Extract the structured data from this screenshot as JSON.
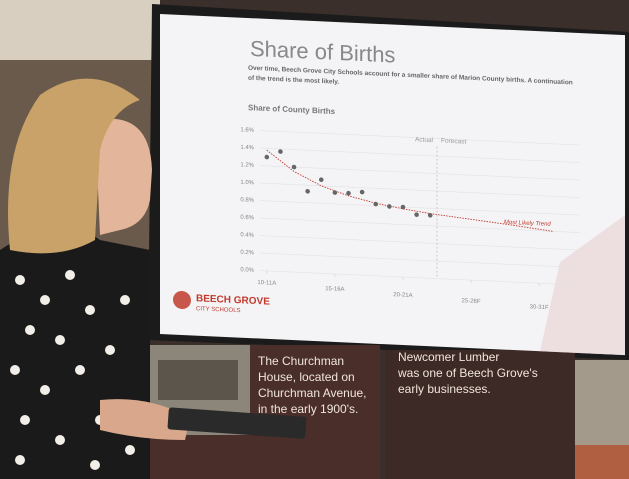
{
  "screen": {
    "title": "Share of Births",
    "subtitle_lines": [
      "Over time, Beech Grove City Schools account for a smaller share of Marion County births. A continuation",
      "of the trend is the most likely."
    ],
    "logo": {
      "name": "BEECH GROVE",
      "sub": "CITY SCHOOLS"
    },
    "chart": {
      "type": "scatter",
      "title": "Share of County Births",
      "x": [
        0,
        1,
        2,
        3,
        4,
        5,
        6,
        7,
        8,
        9,
        10,
        11,
        12
      ],
      "values": [
        1.3,
        1.37,
        1.2,
        0.93,
        1.07,
        0.93,
        0.93,
        0.95,
        0.82,
        0.8,
        0.8,
        0.72,
        0.72
      ],
      "color": "#666666",
      "trend": {
        "name": "Most Likely Trend",
        "x": [
          0,
          2,
          4,
          6,
          8,
          10,
          12,
          14,
          16,
          18,
          21
        ],
        "values": [
          1.38,
          1.15,
          1.0,
          0.9,
          0.83,
          0.78,
          0.74,
          0.71,
          0.68,
          0.65,
          0.6
        ],
        "color": "#c0392b"
      },
      "xlim": [
        -0.5,
        23
      ],
      "xticks": [
        {
          "value": 0,
          "label": "10-11A"
        },
        {
          "value": 5,
          "label": "15-16A"
        },
        {
          "value": 10,
          "label": "20-21A"
        },
        {
          "value": 15,
          "label": "25-26F"
        },
        {
          "value": 20,
          "label": "30-31F"
        }
      ],
      "ylim": [
        0,
        1.6
      ],
      "yticks": [
        {
          "value": 0,
          "label": "0.0%"
        },
        {
          "value": 0.2,
          "label": "0.2%"
        },
        {
          "value": 0.4,
          "label": "0.4%"
        },
        {
          "value": 0.6,
          "label": "0.6%"
        },
        {
          "value": 0.8,
          "label": "0.8%"
        },
        {
          "value": 1.0,
          "label": "1.0%"
        },
        {
          "value": 1.2,
          "label": "1.2%"
        },
        {
          "value": 1.4,
          "label": "1.4%"
        },
        {
          "value": 1.6,
          "label": "1.6%"
        }
      ],
      "divider": {
        "x": 12.5,
        "left": "Actual",
        "right": "Forecast"
      },
      "grid": true
    }
  },
  "captions": [
    {
      "lines": [
        "The Churchman",
        "House, located on",
        "Churchman Avenue,",
        "in the early 1900's."
      ]
    },
    {
      "lines": [
        "Newcomer Lumber",
        "was one of Beech Grove's",
        "early businesses."
      ]
    }
  ]
}
